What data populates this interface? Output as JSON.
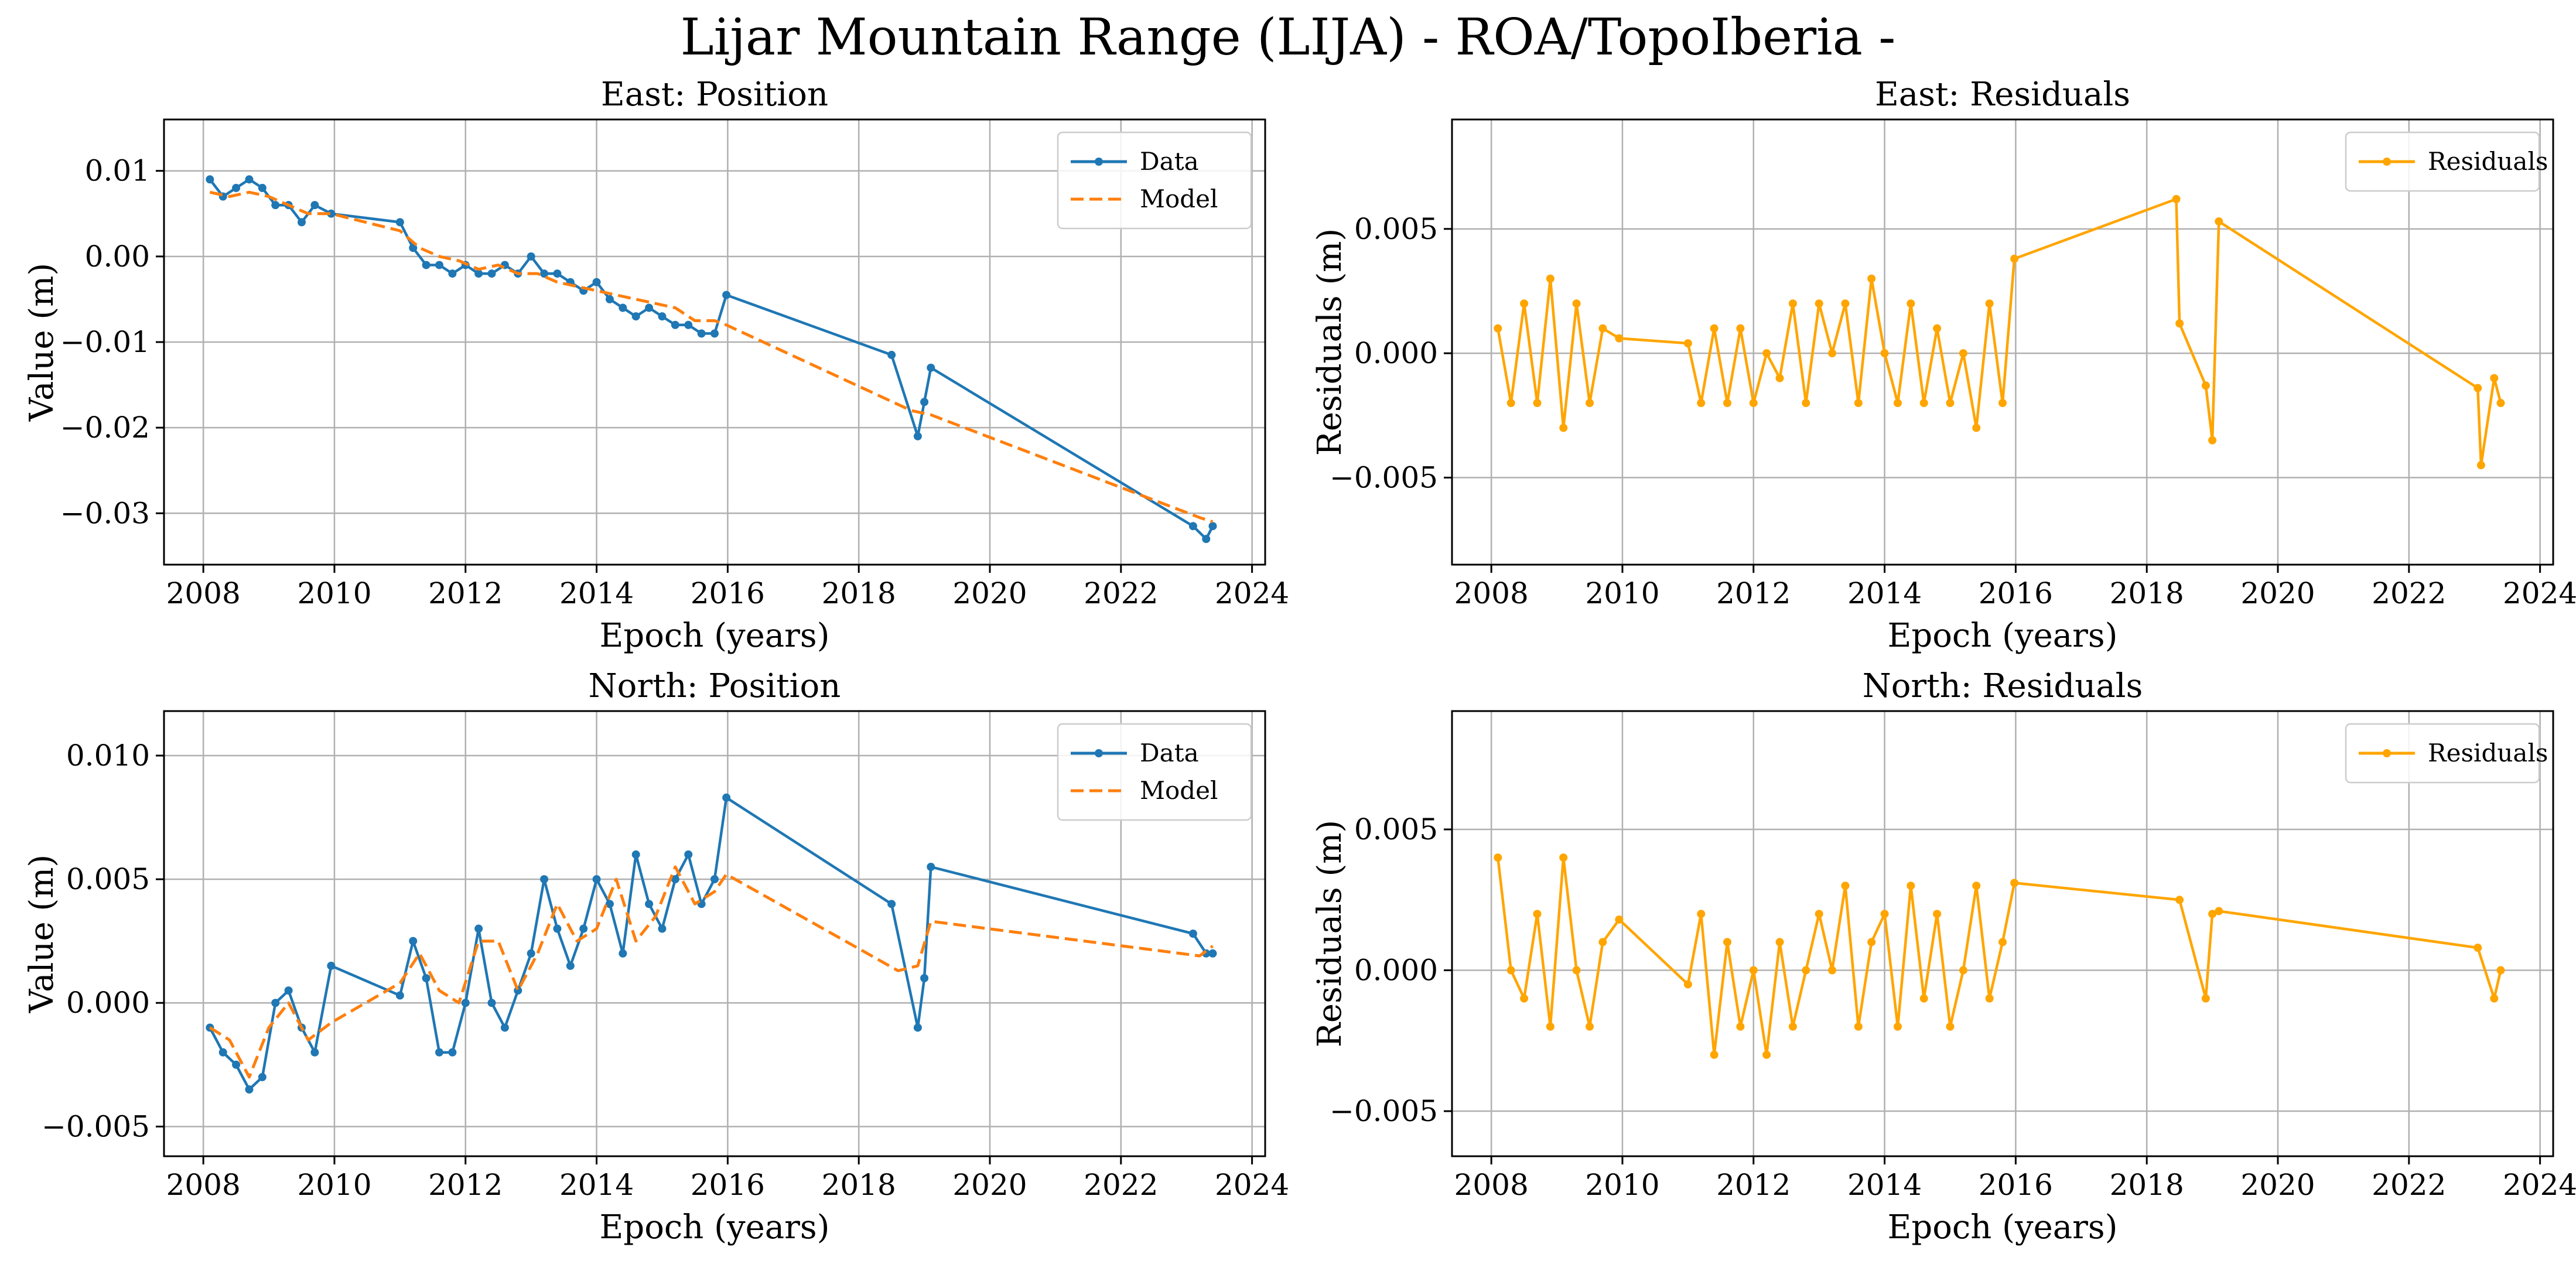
{
  "figure_title": "Lijar Mountain Range (LIJA) - ROA/TopoIberia -",
  "colors": {
    "data": "#1f77b4",
    "model": "#ff7f0e",
    "residuals": "#ffa500",
    "grid": "#b0b0b0"
  },
  "chart_data": [
    {
      "id": "east-position",
      "type": "line",
      "title": "East: Position",
      "xlabel": "Epoch (years)",
      "ylabel": "Value (m)",
      "xlim": [
        2007.4,
        2024.2
      ],
      "ylim": [
        -0.036,
        0.016
      ],
      "xticks": [
        2008,
        2010,
        2012,
        2014,
        2016,
        2018,
        2020,
        2022,
        2024
      ],
      "xtick_labels": [
        "2008",
        "2010",
        "2012",
        "2014",
        "2016",
        "2018",
        "2020",
        "2022",
        "2024"
      ],
      "yticks": [
        -0.03,
        -0.02,
        -0.01,
        0.0,
        0.01
      ],
      "ytick_labels": [
        "−0.03",
        "−0.02",
        "−0.01",
        "0.00",
        "0.01"
      ],
      "legend": {
        "location": "top-right",
        "entries": [
          "Data",
          "Model"
        ]
      },
      "series": [
        {
          "name": "Data",
          "style": "line-marker",
          "color": "#1f77b4",
          "x": [
            2008.1,
            2008.3,
            2008.5,
            2008.7,
            2008.9,
            2009.1,
            2009.3,
            2009.5,
            2009.7,
            2009.95,
            2011.0,
            2011.2,
            2011.4,
            2011.6,
            2011.8,
            2012.0,
            2012.2,
            2012.4,
            2012.6,
            2012.8,
            2013.0,
            2013.2,
            2013.4,
            2013.6,
            2013.8,
            2014.0,
            2014.2,
            2014.4,
            2014.6,
            2014.8,
            2015.0,
            2015.2,
            2015.4,
            2015.6,
            2015.8,
            2015.98,
            2018.5,
            2018.9,
            2019.0,
            2019.1,
            2023.1,
            2023.3,
            2023.4
          ],
          "y": [
            0.009,
            0.007,
            0.008,
            0.009,
            0.008,
            0.006,
            0.006,
            0.004,
            0.006,
            0.005,
            0.004,
            0.001,
            -0.001,
            -0.001,
            -0.002,
            -0.001,
            -0.002,
            -0.002,
            -0.001,
            -0.002,
            0.0,
            -0.002,
            -0.002,
            -0.003,
            -0.004,
            -0.003,
            -0.005,
            -0.006,
            -0.007,
            -0.006,
            -0.007,
            -0.008,
            -0.008,
            -0.009,
            -0.009,
            -0.0045,
            -0.0115,
            -0.021,
            -0.017,
            -0.013,
            -0.0315,
            -0.033,
            -0.0315
          ]
        },
        {
          "name": "Model",
          "style": "dashed",
          "color": "#ff7f0e",
          "x": [
            2008.1,
            2008.4,
            2008.7,
            2009.0,
            2009.3,
            2009.6,
            2009.95,
            2011.0,
            2011.3,
            2011.6,
            2011.9,
            2012.2,
            2012.5,
            2012.8,
            2013.1,
            2013.4,
            2013.7,
            2014.0,
            2014.3,
            2014.6,
            2014.9,
            2015.2,
            2015.5,
            2015.8,
            2015.98,
            2018.8,
            2019.1,
            2023.2,
            2023.4
          ],
          "y": [
            0.0075,
            0.007,
            0.0075,
            0.007,
            0.006,
            0.005,
            0.005,
            0.003,
            0.001,
            0.0,
            -0.0005,
            -0.0015,
            -0.001,
            -0.002,
            -0.002,
            -0.003,
            -0.0035,
            -0.004,
            -0.0045,
            -0.005,
            -0.0055,
            -0.006,
            -0.0075,
            -0.0075,
            -0.008,
            -0.018,
            -0.0185,
            -0.0305,
            -0.031
          ]
        }
      ]
    },
    {
      "id": "east-residuals",
      "type": "line",
      "title": "East: Residuals",
      "xlabel": "Epoch (years)",
      "ylabel": "Residuals (m)",
      "xlim": [
        2007.4,
        2024.2
      ],
      "ylim": [
        -0.0085,
        0.0094
      ],
      "xticks": [
        2008,
        2010,
        2012,
        2014,
        2016,
        2018,
        2020,
        2022,
        2024
      ],
      "xtick_labels": [
        "2008",
        "2010",
        "2012",
        "2014",
        "2016",
        "2018",
        "2020",
        "2022",
        "2024"
      ],
      "yticks": [
        -0.005,
        0.0,
        0.005
      ],
      "ytick_labels": [
        "−0.005",
        "0.000",
        "0.005"
      ],
      "legend": {
        "location": "top-right",
        "entries": [
          "Residuals"
        ]
      },
      "series": [
        {
          "name": "Residuals",
          "style": "line-marker",
          "color": "#ffa500",
          "x": [
            2008.1,
            2008.3,
            2008.5,
            2008.7,
            2008.9,
            2009.1,
            2009.3,
            2009.5,
            2009.7,
            2009.95,
            2011.0,
            2011.2,
            2011.4,
            2011.6,
            2011.8,
            2012.0,
            2012.2,
            2012.4,
            2012.6,
            2012.8,
            2013.0,
            2013.2,
            2013.4,
            2013.6,
            2013.8,
            2014.0,
            2014.2,
            2014.4,
            2014.6,
            2014.8,
            2015.0,
            2015.2,
            2015.4,
            2015.6,
            2015.8,
            2015.98,
            2018.45,
            2018.5,
            2018.9,
            2019.0,
            2019.1,
            2023.05,
            2023.1,
            2023.3,
            2023.4
          ],
          "y": [
            0.001,
            -0.002,
            0.002,
            -0.002,
            0.003,
            -0.003,
            0.002,
            -0.002,
            0.001,
            0.0006,
            0.0004,
            -0.002,
            0.001,
            -0.002,
            0.001,
            -0.002,
            0.0,
            -0.001,
            0.002,
            -0.002,
            0.002,
            0.0,
            0.002,
            -0.002,
            0.003,
            0.0,
            -0.002,
            0.002,
            -0.002,
            0.001,
            -0.002,
            0.0,
            -0.003,
            0.002,
            -0.002,
            0.0038,
            0.0062,
            0.0012,
            -0.0013,
            -0.0035,
            0.0053,
            -0.0014,
            -0.0045,
            -0.001,
            -0.002
          ]
        }
      ]
    },
    {
      "id": "north-position",
      "type": "line",
      "title": "North: Position",
      "xlabel": "Epoch (years)",
      "ylabel": "Value (m)",
      "xlim": [
        2007.4,
        2024.2
      ],
      "ylim": [
        -0.0062,
        0.0118
      ],
      "xticks": [
        2008,
        2010,
        2012,
        2014,
        2016,
        2018,
        2020,
        2022,
        2024
      ],
      "xtick_labels": [
        "2008",
        "2010",
        "2012",
        "2014",
        "2016",
        "2018",
        "2020",
        "2022",
        "2024"
      ],
      "yticks": [
        -0.005,
        0.0,
        0.005,
        0.01
      ],
      "ytick_labels": [
        "−0.005",
        "0.000",
        "0.005",
        "0.010"
      ],
      "legend": {
        "location": "top-right",
        "entries": [
          "Data",
          "Model"
        ]
      },
      "series": [
        {
          "name": "Data",
          "style": "line-marker",
          "color": "#1f77b4",
          "x": [
            2008.1,
            2008.3,
            2008.5,
            2008.7,
            2008.9,
            2009.1,
            2009.3,
            2009.5,
            2009.7,
            2009.95,
            2011.0,
            2011.2,
            2011.4,
            2011.6,
            2011.8,
            2012.0,
            2012.2,
            2012.4,
            2012.6,
            2012.8,
            2013.0,
            2013.2,
            2013.4,
            2013.6,
            2013.8,
            2014.0,
            2014.2,
            2014.4,
            2014.6,
            2014.8,
            2015.0,
            2015.2,
            2015.4,
            2015.6,
            2015.8,
            2015.98,
            2018.5,
            2018.9,
            2019.0,
            2019.1,
            2023.1,
            2023.3,
            2023.4
          ],
          "y": [
            -0.001,
            -0.002,
            -0.0025,
            -0.0035,
            -0.003,
            0.0,
            0.0005,
            -0.001,
            -0.002,
            0.0015,
            0.0003,
            0.0025,
            0.001,
            -0.002,
            -0.002,
            0.0,
            0.003,
            0.0,
            -0.001,
            0.0005,
            0.002,
            0.005,
            0.003,
            0.0015,
            0.003,
            0.005,
            0.004,
            0.002,
            0.006,
            0.004,
            0.003,
            0.005,
            0.006,
            0.004,
            0.005,
            0.0083,
            0.004,
            -0.001,
            0.001,
            0.0055,
            0.0028,
            0.002,
            0.002
          ]
        },
        {
          "name": "Model",
          "style": "dashed",
          "color": "#ff7f0e",
          "x": [
            2008.1,
            2008.4,
            2008.7,
            2009.0,
            2009.3,
            2009.6,
            2009.95,
            2011.0,
            2011.3,
            2011.6,
            2011.9,
            2012.2,
            2012.5,
            2012.8,
            2013.1,
            2013.4,
            2013.7,
            2014.0,
            2014.3,
            2014.6,
            2014.9,
            2015.2,
            2015.5,
            2015.8,
            2015.98,
            2018.6,
            2018.9,
            2019.1,
            2023.2,
            2023.4
          ],
          "y": [
            -0.001,
            -0.0015,
            -0.003,
            -0.001,
            0.0,
            -0.0015,
            -0.0008,
            0.0008,
            0.002,
            0.0005,
            0.0,
            0.0025,
            0.0025,
            0.0005,
            0.002,
            0.004,
            0.0025,
            0.003,
            0.005,
            0.0025,
            0.0035,
            0.0055,
            0.004,
            0.0045,
            0.0052,
            0.0013,
            0.0015,
            0.0033,
            0.0019,
            0.0023
          ]
        }
      ]
    },
    {
      "id": "north-residuals",
      "type": "line",
      "title": "North: Residuals",
      "xlabel": "Epoch (years)",
      "ylabel": "Residuals (m)",
      "xlim": [
        2007.4,
        2024.2
      ],
      "ylim": [
        -0.0066,
        0.0092
      ],
      "xticks": [
        2008,
        2010,
        2012,
        2014,
        2016,
        2018,
        2020,
        2022,
        2024
      ],
      "xtick_labels": [
        "2008",
        "2010",
        "2012",
        "2014",
        "2016",
        "2018",
        "2020",
        "2022",
        "2024"
      ],
      "yticks": [
        -0.005,
        0.0,
        0.005
      ],
      "ytick_labels": [
        "−0.005",
        "0.000",
        "0.005"
      ],
      "legend": {
        "location": "top-right",
        "entries": [
          "Residuals"
        ]
      },
      "series": [
        {
          "name": "Residuals",
          "style": "line-marker",
          "color": "#ffa500",
          "x": [
            2008.1,
            2008.3,
            2008.5,
            2008.7,
            2008.9,
            2009.1,
            2009.3,
            2009.5,
            2009.7,
            2009.95,
            2011.0,
            2011.2,
            2011.4,
            2011.6,
            2011.8,
            2012.0,
            2012.2,
            2012.4,
            2012.6,
            2012.8,
            2013.0,
            2013.2,
            2013.4,
            2013.6,
            2013.8,
            2014.0,
            2014.2,
            2014.4,
            2014.6,
            2014.8,
            2015.0,
            2015.2,
            2015.4,
            2015.6,
            2015.8,
            2015.98,
            2018.5,
            2018.9,
            2019.0,
            2019.1,
            2023.05,
            2023.3,
            2023.4
          ],
          "y": [
            0.004,
            0.0,
            -0.001,
            0.002,
            -0.002,
            0.004,
            0.0,
            -0.002,
            0.001,
            0.0018,
            -0.0005,
            0.002,
            -0.003,
            0.001,
            -0.002,
            0.0,
            -0.003,
            0.001,
            -0.002,
            0.0,
            0.002,
            0.0,
            0.003,
            -0.002,
            0.001,
            0.002,
            -0.002,
            0.003,
            -0.001,
            0.002,
            -0.002,
            0.0,
            0.003,
            -0.001,
            0.001,
            0.0031,
            0.0025,
            -0.001,
            0.002,
            0.0021,
            0.0008,
            -0.001,
            0.0
          ]
        }
      ]
    }
  ]
}
